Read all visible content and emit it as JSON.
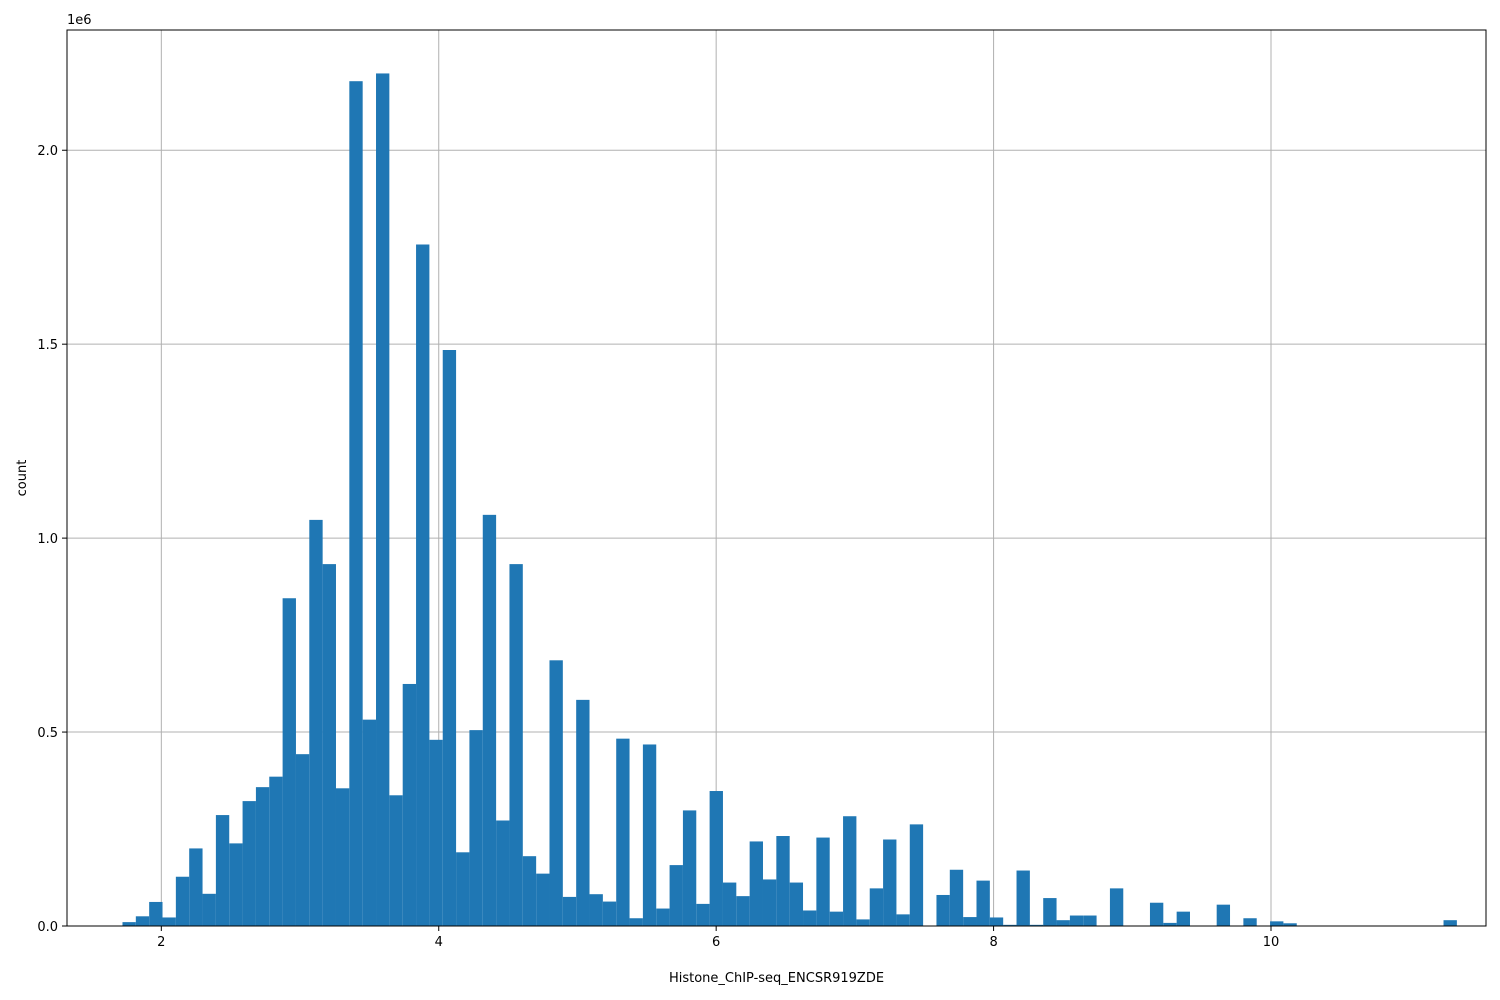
{
  "chart_data": {
    "type": "bar",
    "histogram": true,
    "xlabel": "Histone_ChIP-seq_ENCSR919ZDE",
    "ylabel": "count",
    "y_scale_label": "1e6",
    "xlim": [
      1.32,
      11.55
    ],
    "ylim": [
      0,
      2.31
    ],
    "x_ticks": [
      2,
      4,
      6,
      8,
      10
    ],
    "x_tick_labels": [
      "2",
      "4",
      "6",
      "8",
      "10"
    ],
    "y_ticks": [
      0,
      0.5,
      1.0,
      1.5,
      2.0
    ],
    "y_tick_labels": [
      "0.0",
      "0.5",
      "1.0",
      "1.5",
      "2.0"
    ],
    "grid": true,
    "bar_color": "#1f77b4",
    "bin_start": 1.72,
    "bin_width": 0.0962,
    "counts": [
      0.01,
      0.025,
      0.062,
      0.022,
      0.127,
      0.2,
      0.083,
      0.286,
      0.213,
      0.322,
      0.358,
      0.385,
      0.845,
      0.443,
      1.047,
      0.933,
      0.355,
      2.178,
      0.532,
      2.198,
      0.337,
      0.624,
      1.757,
      0.48,
      1.485,
      0.19,
      0.505,
      1.06,
      0.272,
      0.933,
      0.18,
      0.135,
      0.685,
      0.075,
      0.583,
      0.082,
      0.063,
      0.483,
      0.02,
      0.468,
      0.045,
      0.157,
      0.298,
      0.057,
      0.348,
      0.112,
      0.077,
      0.218,
      0.12,
      0.232,
      0.112,
      0.04,
      0.228,
      0.037,
      0.283,
      0.017,
      0.097,
      0.223,
      0.03,
      0.262,
      0.0,
      0.08,
      0.145,
      0.023,
      0.117,
      0.022,
      0.003,
      0.143,
      0.003,
      0.072,
      0.015,
      0.027,
      0.027,
      0.0,
      0.097,
      0.0,
      0.0,
      0.06,
      0.008,
      0.037,
      0.0,
      0.0,
      0.055,
      0.0,
      0.02,
      0.0,
      0.012,
      0.007,
      0.0,
      0.0,
      0.0,
      0.0,
      0.0,
      0.0,
      0.0,
      0.0,
      0.0,
      0.0,
      0.0,
      0.015
    ]
  }
}
